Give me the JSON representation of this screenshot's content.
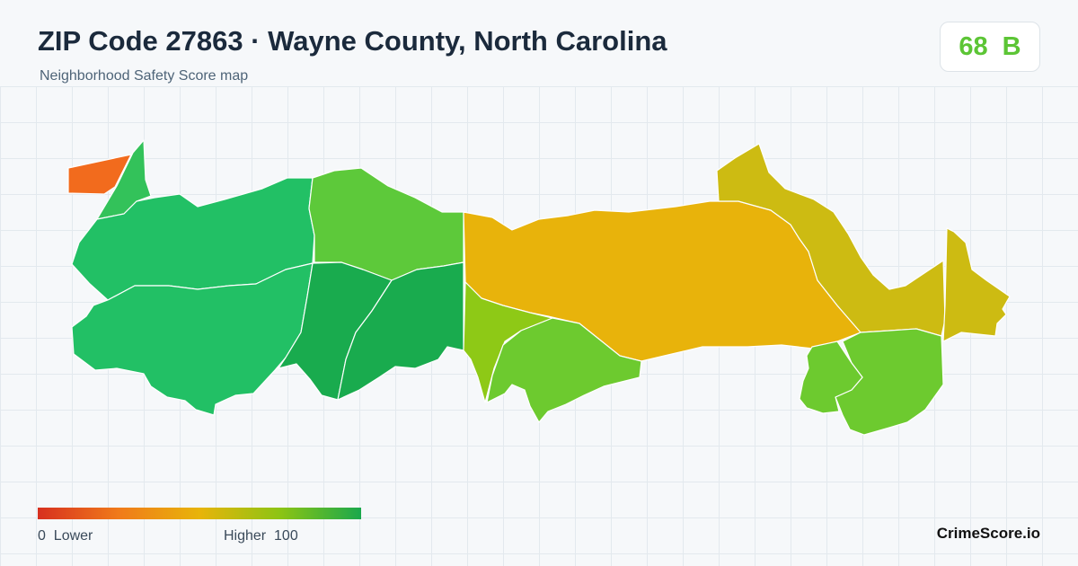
{
  "header": {
    "title": "ZIP Code 27863 · Wayne County, North Carolina",
    "subtitle": "Neighborhood Safety Score map"
  },
  "score": {
    "value": "68",
    "grade": "B",
    "color": "#5cc535"
  },
  "legend": {
    "min_label": "0",
    "low_label": "Lower",
    "high_label": "Higher",
    "max_label": "100",
    "colors": [
      "#d7301f",
      "#f07a1a",
      "#e8b40a",
      "#8cc414",
      "#1aa84c"
    ]
  },
  "map": {
    "region_colors": {
      "nw-orange": "#f26b1d",
      "nw-strip": "#33c25a",
      "west-north": "#22c065",
      "west-south": "#22c065",
      "north-central": "#5dc93a",
      "center-south": "#19ab4e",
      "center-east": "#19ab4e",
      "central-yellow": "#e8b30b",
      "south-lime": "#8ec916",
      "south-mid": "#6dca2f",
      "east-olive": "#cdbb12",
      "east-green": "#6dca2f",
      "east-small": "#6dca2f",
      "far-east": "#cdbb12"
    }
  },
  "brand": "CrimeScore.io"
}
